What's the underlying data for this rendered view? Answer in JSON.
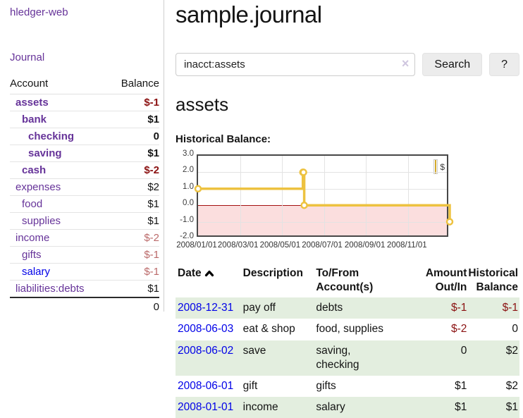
{
  "colors": {
    "purple_link": "#663399",
    "blue_link": "#0000e8",
    "negative_strong": "#8b1212",
    "negative_weak": "#bb6a6a",
    "row_stripe_green": "#e3eedf",
    "chart_gold": "#edc240",
    "chart_negative_fill": "#fbdede",
    "chart_zero_line": "#a31111"
  },
  "sidebar": {
    "app_title": "hledger-web",
    "journal_link": "Journal",
    "account_table": {
      "headers": [
        "Account",
        "Balance"
      ],
      "rows": [
        {
          "name": "assets",
          "balance": "$-1",
          "level": 1,
          "bold": true,
          "name_style": "purple",
          "balance_style": "negstrong"
        },
        {
          "name": "bank",
          "balance": "$1",
          "level": 2,
          "bold": true,
          "name_style": "purple",
          "balance_style": "normal"
        },
        {
          "name": "checking",
          "balance": "0",
          "level": 3,
          "bold": true,
          "name_style": "purple",
          "balance_style": "normal"
        },
        {
          "name": "saving",
          "balance": "$1",
          "level": 3,
          "bold": true,
          "name_style": "purple",
          "balance_style": "normal"
        },
        {
          "name": "cash",
          "balance": "$-2",
          "level": 2,
          "bold": true,
          "name_style": "purple",
          "balance_style": "negstrong"
        },
        {
          "name": "expenses",
          "balance": "$2",
          "level": 1,
          "bold": false,
          "name_style": "purple",
          "balance_style": "normal"
        },
        {
          "name": "food",
          "balance": "$1",
          "level": 2,
          "bold": false,
          "name_style": "purple",
          "balance_style": "normal"
        },
        {
          "name": "supplies",
          "balance": "$1",
          "level": 2,
          "bold": false,
          "name_style": "purple",
          "balance_style": "normal"
        },
        {
          "name": "income",
          "balance": "$-2",
          "level": 1,
          "bold": false,
          "name_style": "purple",
          "balance_style": "negweak"
        },
        {
          "name": "gifts",
          "balance": "$-1",
          "level": 2,
          "bold": false,
          "name_style": "purple",
          "balance_style": "negweak"
        },
        {
          "name": "salary",
          "balance": "$-1",
          "level": 2,
          "bold": false,
          "name_style": "blue",
          "balance_style": "negweak"
        },
        {
          "name": "liabilities:debts",
          "balance": "$1",
          "level": 1,
          "bold": false,
          "name_style": "purple",
          "balance_style": "normal"
        }
      ],
      "total": "0"
    }
  },
  "main": {
    "page_title": "sample.journal",
    "search": {
      "value": "inacct:assets",
      "clear_icon": "×",
      "search_button": "Search",
      "help_button": "?"
    },
    "account_heading": "assets",
    "chart_title": "Historical Balance:"
  },
  "chart_data": {
    "type": "line",
    "step": true,
    "title": "Historical Balance",
    "series": [
      {
        "name": "$",
        "color": "#edc240",
        "points": [
          [
            "2008-01-01",
            1
          ],
          [
            "2008-06-01",
            2
          ],
          [
            "2008-06-02",
            2
          ],
          [
            "2008-06-03",
            0
          ],
          [
            "2008-12-31",
            -1
          ]
        ]
      }
    ],
    "ylim": [
      -2,
      3
    ],
    "yticks": [
      "3.0",
      "2.0",
      "1.0",
      "0.0",
      "-1.0",
      "-2.0"
    ],
    "ytick_values": [
      3,
      2,
      1,
      0,
      -1,
      -2
    ],
    "xticks": [
      {
        "label": "2008/01/01",
        "date": "2008-01-01"
      },
      {
        "label": "2008/03/01",
        "date": "2008-03-01"
      },
      {
        "label": "2008/05/01",
        "date": "2008-05-01"
      },
      {
        "label": "2008/07/01",
        "date": "2008-07-01"
      },
      {
        "label": "2008/09/01",
        "date": "2008-09-01"
      },
      {
        "label": "2008/11/01",
        "date": "2008-11-01"
      }
    ],
    "x_range": [
      "2008-01-01",
      "2008-12-31"
    ],
    "legend": {
      "position": "top-right",
      "entries": [
        "$"
      ]
    },
    "grid": true,
    "negative_region": true
  },
  "register": {
    "headers": [
      "Date",
      "Description",
      "To/From Account(s)",
      "Amount Out/In",
      "Historical Balance"
    ],
    "sort": {
      "column": "Date",
      "direction": "ascending"
    },
    "rows": [
      {
        "date": "2008-12-31",
        "description": "pay off",
        "accounts": "debts",
        "amount": "$-1",
        "balance": "$-1"
      },
      {
        "date": "2008-06-03",
        "description": "eat & shop",
        "accounts": "food, supplies",
        "amount": "$-2",
        "balance": "0"
      },
      {
        "date": "2008-06-02",
        "description": "save",
        "accounts": "saving,\nchecking",
        "amount": "0",
        "balance": "$2"
      },
      {
        "date": "2008-06-01",
        "description": "gift",
        "accounts": "gifts",
        "amount": "$1",
        "balance": "$2"
      },
      {
        "date": "2008-01-01",
        "description": "income",
        "accounts": "salary",
        "amount": "$1",
        "balance": "$1"
      }
    ]
  }
}
